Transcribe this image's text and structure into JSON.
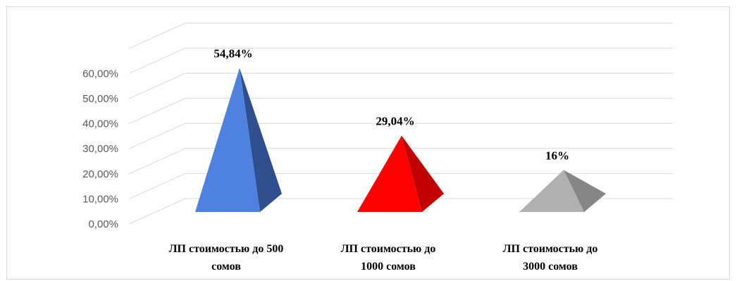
{
  "chart_data": {
    "type": "bar",
    "subtype": "3d-pyramid",
    "title": "",
    "xlabel": "",
    "ylabel": "",
    "categories": [
      [
        "ЛП стоимостью до 500",
        "сомов"
      ],
      [
        "ЛП стоимостью до",
        "1000 сомов"
      ],
      [
        "ЛП стоимостью до",
        "3000 сомов"
      ]
    ],
    "values": [
      54.84,
      29.04,
      16
    ],
    "data_labels": [
      "54,84%",
      "29,04%",
      "16%"
    ],
    "yticks": [
      "0,00%",
      "10,00%",
      "20,00%",
      "30,00%",
      "40,00%",
      "50,00%",
      "60,00%"
    ],
    "ylim": [
      0,
      60
    ],
    "grid": true,
    "legend": "none",
    "colors": [
      {
        "front": "#4f81e0",
        "side": "#2f4f8f"
      },
      {
        "front": "#ff0000",
        "side": "#c00000"
      },
      {
        "front": "#b0b0b0",
        "side": "#868686"
      }
    ]
  }
}
